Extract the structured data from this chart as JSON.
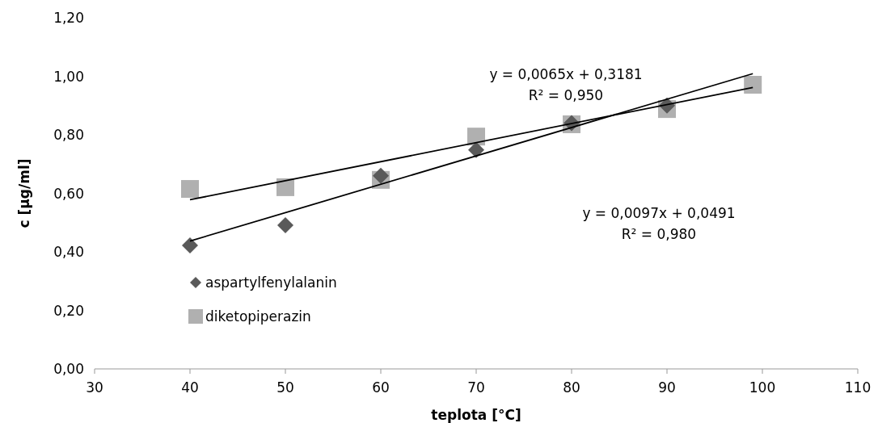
{
  "chart_data": {
    "type": "scatter",
    "xlabel": "teplota [°C]",
    "ylabel": "c [μg/ml]",
    "xlim": [
      30,
      110
    ],
    "xticks": [
      30,
      40,
      50,
      60,
      70,
      80,
      90,
      100,
      110
    ],
    "ylim": [
      0,
      1.2
    ],
    "yticks": [
      {
        "value": 0,
        "label": "0,00"
      },
      {
        "value": 0.2,
        "label": "0,20"
      },
      {
        "value": 0.4,
        "label": "0,40"
      },
      {
        "value": 0.6,
        "label": "0,60"
      },
      {
        "value": 0.8,
        "label": "0,80"
      },
      {
        "value": 1.0,
        "label": "1,00"
      },
      {
        "value": 1.2,
        "label": "1,20"
      }
    ],
    "grid": false,
    "legend": "left",
    "series": [
      {
        "name": "aspartylfenylalanin",
        "color": "#5a5a5a",
        "marker": "diamond",
        "x": [
          40,
          50,
          60,
          70,
          80,
          90
        ],
        "values": [
          0.422,
          0.491,
          0.66,
          0.748,
          0.84,
          0.9
        ]
      },
      {
        "name": "diketopiperazin",
        "color": "#b0b0b0",
        "marker": "square",
        "x": [
          40,
          50,
          60,
          70,
          80,
          90,
          99
        ],
        "values": [
          0.615,
          0.621,
          0.646,
          0.794,
          0.836,
          0.888,
          0.971
        ]
      },
      {
        "type": "line",
        "color": "#000000",
        "x": [
          40,
          99
        ],
        "values": [
          0.437,
          1.009
        ]
      },
      {
        "type": "line",
        "color": "#000000",
        "x": [
          40,
          99
        ],
        "values": [
          0.578,
          0.962
        ]
      }
    ],
    "annotations": [
      "y = 0,0065x + 0,3181\nR² = 0,950",
      "y = 0,0097x + 0,0491\nR² = 0,980"
    ]
  }
}
